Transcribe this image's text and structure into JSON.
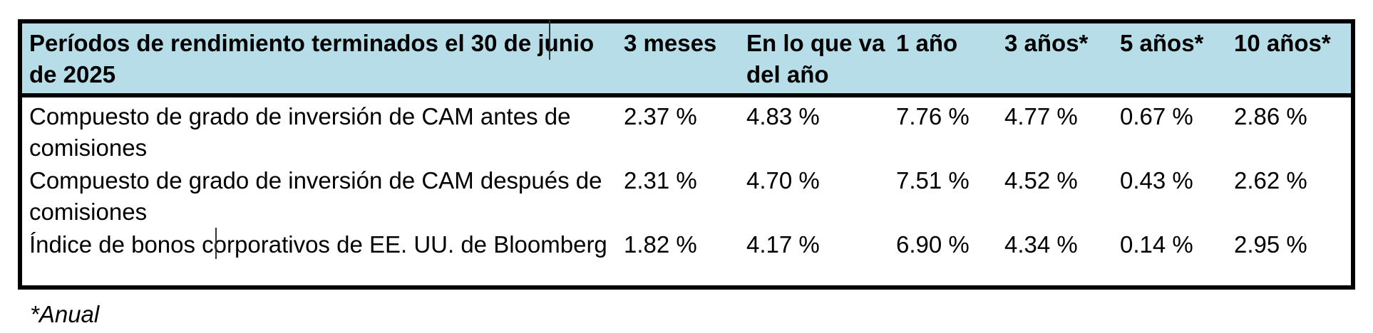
{
  "table": {
    "headers": [
      "Períodos de rendimiento terminados el 30 de junio de 2025",
      "3 meses",
      "En lo que va del año",
      "1 año",
      "3 años*",
      "5 años*",
      "10 años*"
    ],
    "rows": [
      {
        "label": "Compuesto de grado de inversión de CAM antes de comisiones",
        "values": [
          "2.37 %",
          "4.83 %",
          "7.76 %",
          "4.77 %",
          "0.67 %",
          "2.86 %"
        ]
      },
      {
        "label": "Compuesto de grado de inversión de CAM después de comisiones",
        "values": [
          "2.31 %",
          "4.70 %",
          "7.51 %",
          "4.52 %",
          "0.43 %",
          "2.62 %"
        ]
      },
      {
        "label": "Índice de bonos corporativos de EE. UU. de Bloomberg",
        "values": [
          "1.82 %",
          "4.17 %",
          "6.90 %",
          "4.34 %",
          "0.14 %",
          "2.95 %"
        ]
      }
    ],
    "header_bg_color": "#b7dde8",
    "border_color": "#000000"
  },
  "footnote": "*Anual"
}
